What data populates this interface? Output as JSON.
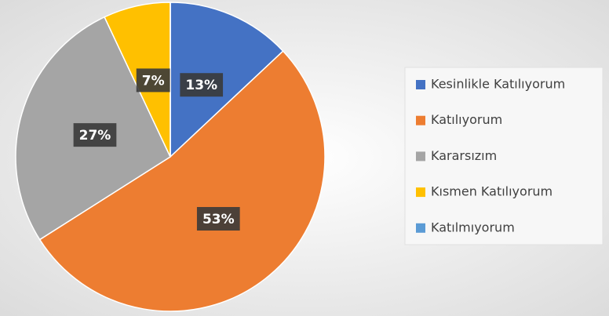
{
  "chart_data": {
    "type": "pie",
    "categories": [
      "Kesinlikle Katılıyorum",
      "Katılıyorum",
      "Kararsızım",
      "Kısmen Katılıyorum",
      "Katılmıyorum"
    ],
    "values": [
      13,
      53,
      27,
      7,
      0
    ],
    "value_labels": [
      "13%",
      "53%",
      "27%",
      "7%",
      null
    ],
    "colors": [
      "#4472c4",
      "#ed7d31",
      "#a5a5a5",
      "#ffc000",
      "#5b9bd5"
    ],
    "legend": "right"
  }
}
